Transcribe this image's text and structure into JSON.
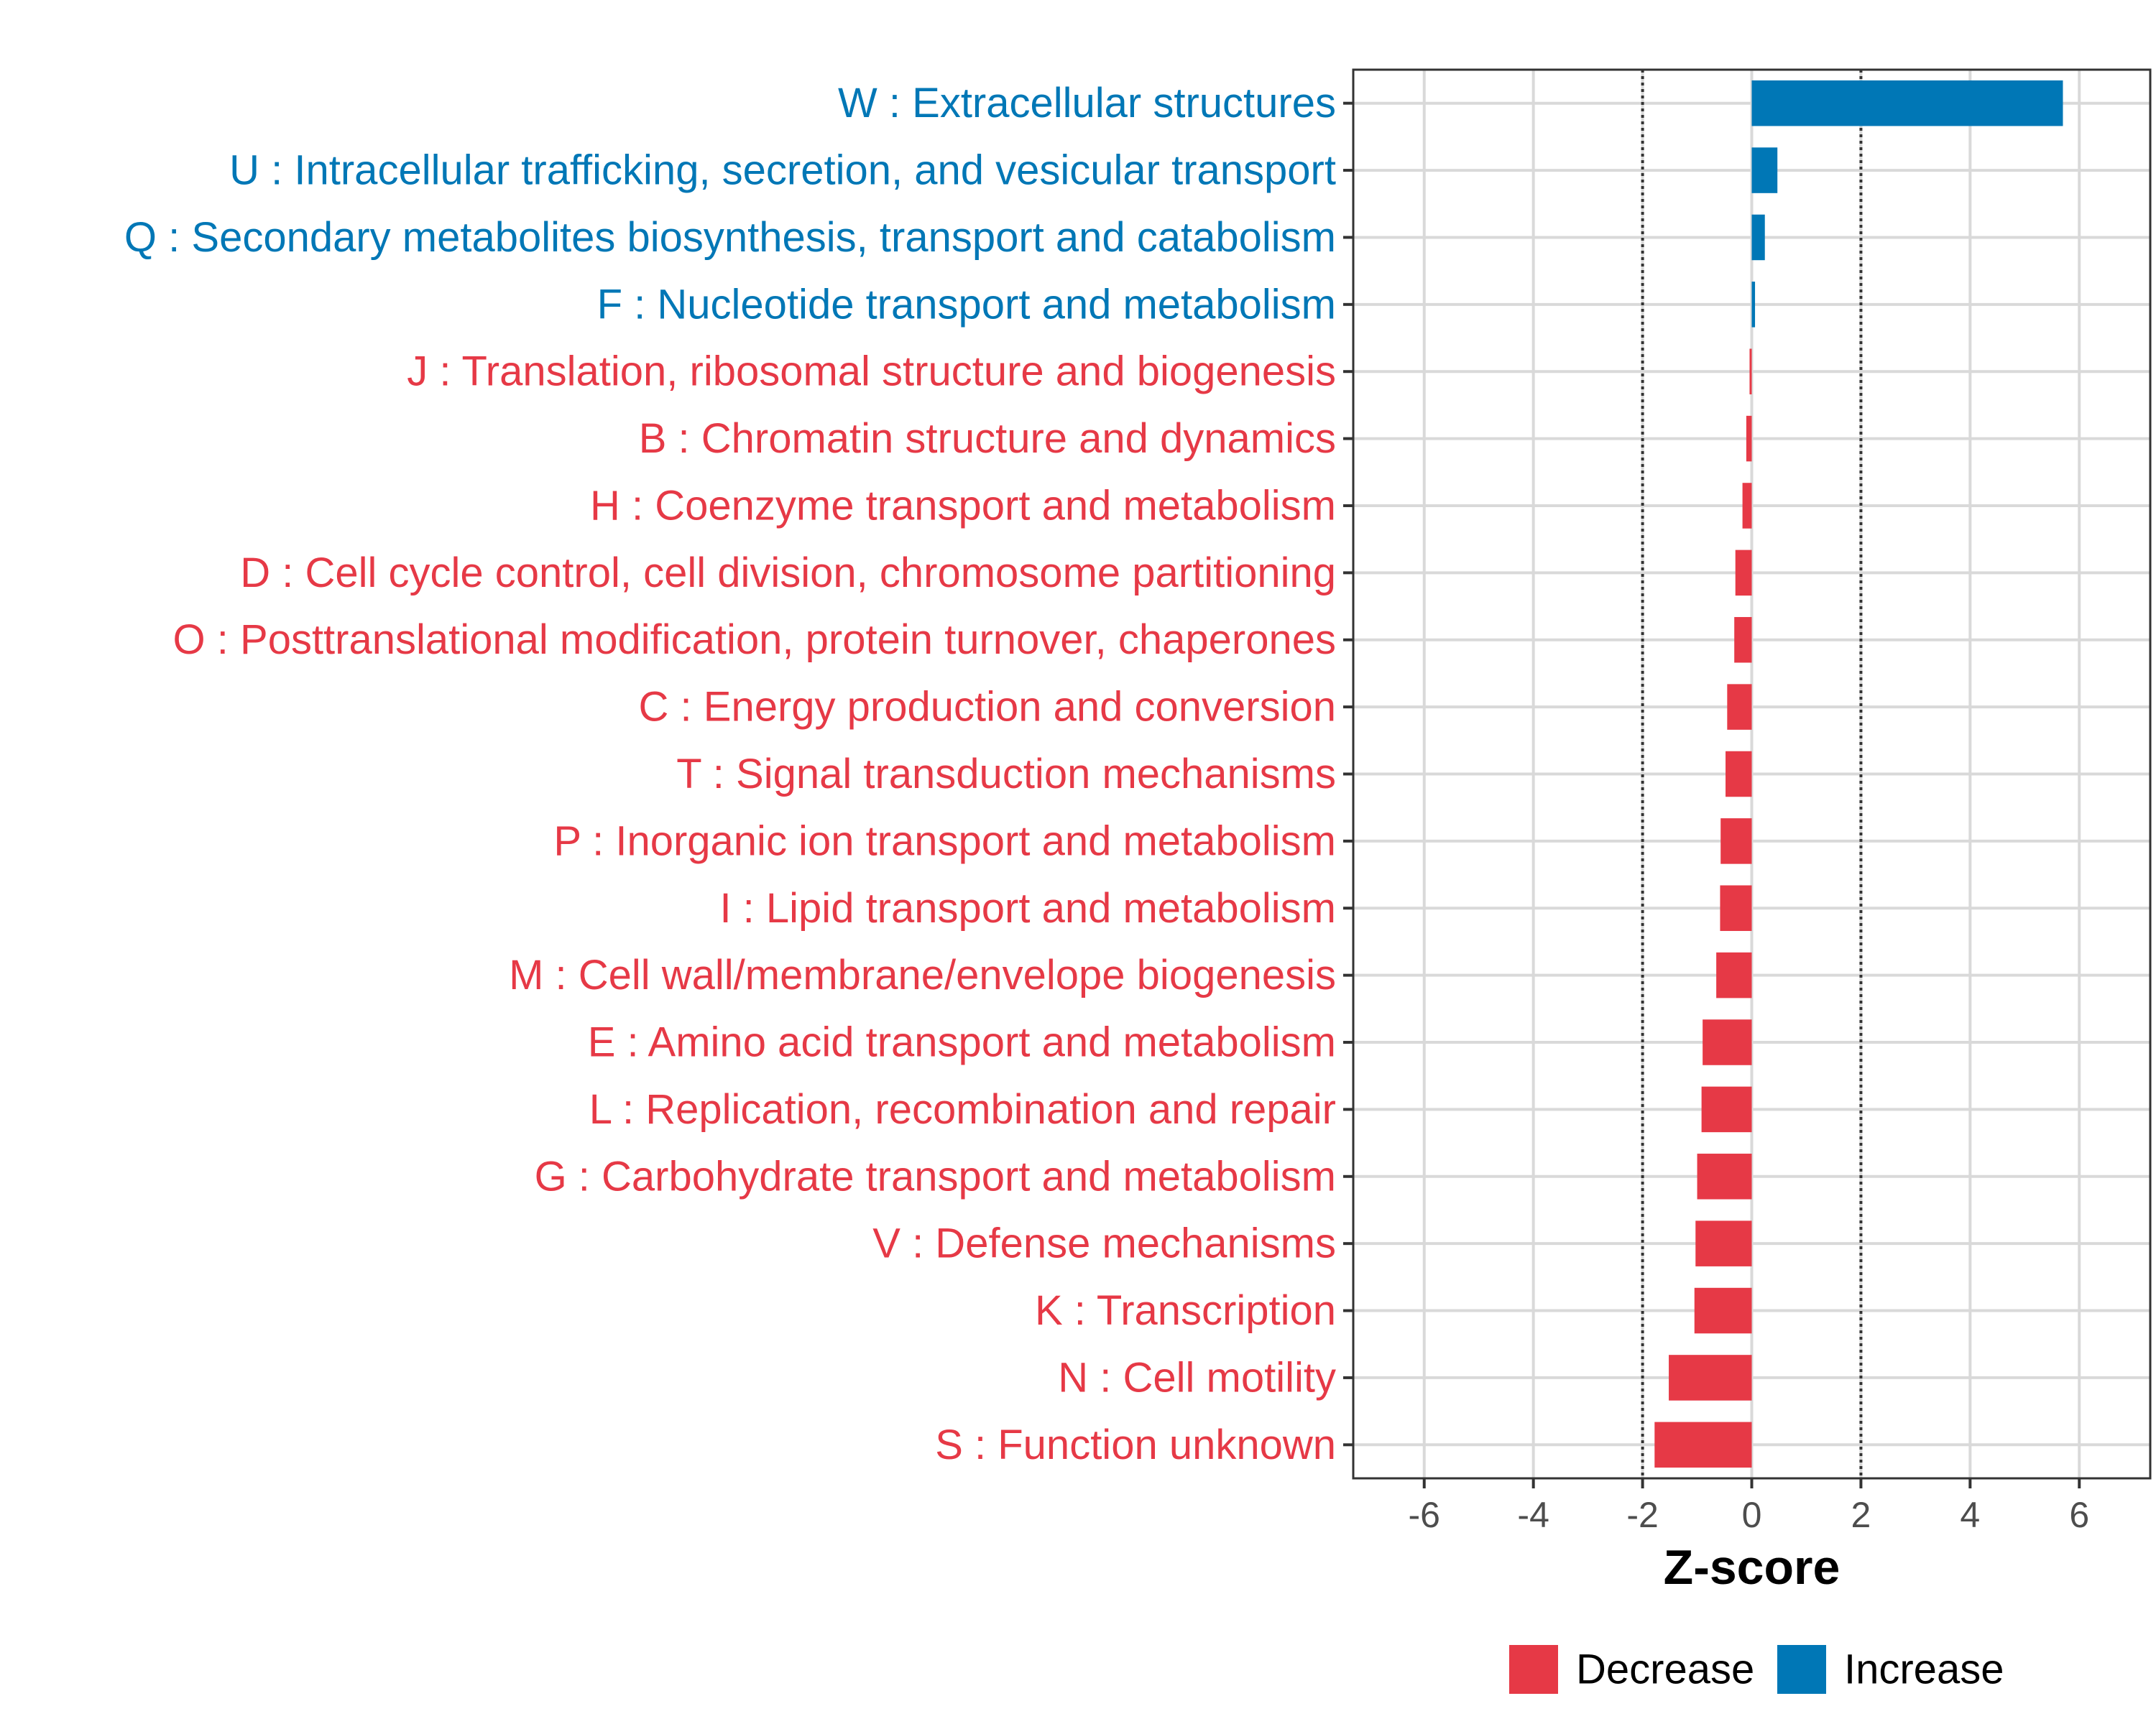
{
  "chart_data": {
    "type": "bar",
    "orientation": "horizontal",
    "title": "",
    "xlabel": "Z-score",
    "ylabel": "",
    "xlim": [
      -7.3,
      7.3
    ],
    "xticks": [
      -6,
      -4,
      -2,
      0,
      2,
      4,
      6
    ],
    "tick_labels": [
      "-6",
      "-4",
      "-2",
      "0",
      "2",
      "4",
      "6"
    ],
    "reference_lines": [
      -2,
      2
    ],
    "grid": true,
    "colors": {
      "Decrease": "#e63946",
      "Increase": "#0077b6"
    },
    "categories": [
      "W : Extracellular structures",
      "U : Intracellular trafficking, secretion, and vesicular transport",
      "Q : Secondary metabolites biosynthesis, transport and catabolism",
      "F : Nucleotide transport and metabolism",
      "J : Translation, ribosomal structure and biogenesis",
      "B : Chromatin structure and dynamics",
      "H : Coenzyme transport and metabolism",
      "D : Cell cycle control, cell division, chromosome partitioning",
      "O : Posttranslational modification, protein turnover, chaperones",
      "C : Energy production and conversion",
      "T : Signal transduction mechanisms",
      "P : Inorganic ion transport and metabolism",
      "I : Lipid transport and metabolism",
      "M : Cell wall/membrane/envelope biogenesis",
      "E : Amino acid transport and metabolism",
      "L : Replication, recombination and repair",
      "G : Carbohydrate transport and metabolism",
      "V : Defense mechanisms",
      "K : Transcription",
      "N : Cell motility",
      "S : Function unknown"
    ],
    "values": [
      5.7,
      0.47,
      0.24,
      0.06,
      -0.04,
      -0.1,
      -0.17,
      -0.3,
      -0.32,
      -0.45,
      -0.48,
      -0.57,
      -0.58,
      -0.65,
      -0.9,
      -0.92,
      -1.0,
      -1.03,
      -1.05,
      -1.52,
      -1.78
    ],
    "groups": [
      "Increase",
      "Increase",
      "Increase",
      "Increase",
      "Decrease",
      "Decrease",
      "Decrease",
      "Decrease",
      "Decrease",
      "Decrease",
      "Decrease",
      "Decrease",
      "Decrease",
      "Decrease",
      "Decrease",
      "Decrease",
      "Decrease",
      "Decrease",
      "Decrease",
      "Decrease",
      "Decrease"
    ],
    "legend": {
      "position": "bottom",
      "items": [
        {
          "label": "Decrease",
          "color": "#e63946"
        },
        {
          "label": "Increase",
          "color": "#0077b6"
        }
      ]
    }
  }
}
